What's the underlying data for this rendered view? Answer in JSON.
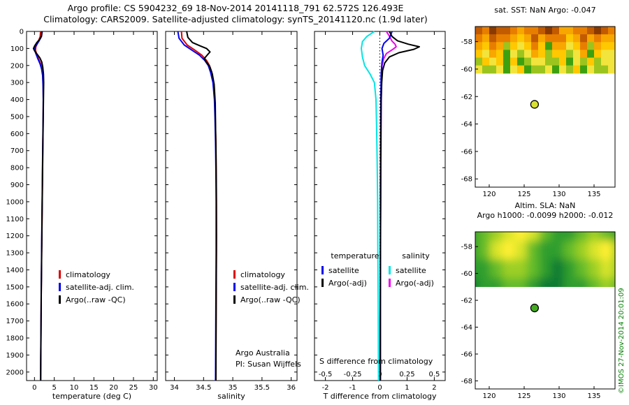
{
  "header": {
    "line1": "Argo profile: CS 5904232_69 18-Nov-2014 20141118_791 62.572S 126.493E",
    "line2": "Climatology: CARS2009. Satellite-adjusted climatology: synTS_20141120.nc (1.9d later)"
  },
  "watermark": "©IMOS 27-Nov-2014 20:01:09",
  "chart_data": [
    {
      "id": "temperature_profile",
      "type": "line",
      "xlabel": "temperature (deg C)",
      "xlim": [
        -2,
        31
      ],
      "ylim": [
        0,
        2050
      ],
      "xticks": [
        0,
        5,
        10,
        15,
        20,
        25,
        30
      ],
      "yticks": [
        0,
        100,
        200,
        300,
        400,
        500,
        600,
        700,
        800,
        900,
        1000,
        1100,
        1200,
        1300,
        1400,
        1500,
        1600,
        1700,
        1800,
        1900,
        2000
      ],
      "legend_position": "lower-left-inside",
      "series": [
        {
          "name": "climatology",
          "color": "#dd0000",
          "points": [
            [
              0,
              1.55
            ],
            [
              30,
              1.45
            ],
            [
              60,
              0.95
            ],
            [
              90,
              0.35
            ],
            [
              110,
              0.25
            ],
            [
              130,
              0.5
            ],
            [
              160,
              1.0
            ],
            [
              190,
              1.55
            ],
            [
              220,
              1.9
            ],
            [
              260,
              2.1
            ],
            [
              320,
              2.2
            ],
            [
              400,
              2.24
            ],
            [
              500,
              2.2
            ],
            [
              600,
              2.15
            ],
            [
              700,
              2.1
            ],
            [
              800,
              2.05
            ],
            [
              900,
              2.0
            ],
            [
              1000,
              1.96
            ],
            [
              1100,
              1.91
            ],
            [
              1200,
              1.86
            ],
            [
              1300,
              1.81
            ],
            [
              1400,
              1.77
            ],
            [
              1500,
              1.73
            ],
            [
              1600,
              1.69
            ],
            [
              1700,
              1.66
            ],
            [
              1800,
              1.63
            ],
            [
              1900,
              1.6
            ],
            [
              2000,
              1.57
            ],
            [
              2050,
              1.56
            ]
          ]
        },
        {
          "name": "satellite-adj. clim.",
          "color": "#0000ee",
          "points": [
            [
              0,
              1.95
            ],
            [
              30,
              1.75
            ],
            [
              60,
              1.05
            ],
            [
              90,
              0.2
            ],
            [
              110,
              0.05
            ],
            [
              130,
              0.35
            ],
            [
              160,
              0.85
            ],
            [
              190,
              1.4
            ],
            [
              220,
              1.8
            ],
            [
              260,
              2.05
            ],
            [
              320,
              2.17
            ],
            [
              400,
              2.21
            ],
            [
              500,
              2.18
            ],
            [
              600,
              2.13
            ],
            [
              700,
              2.08
            ],
            [
              800,
              2.03
            ],
            [
              900,
              1.98
            ],
            [
              1000,
              1.94
            ],
            [
              1100,
              1.89
            ],
            [
              1200,
              1.84
            ],
            [
              1300,
              1.79
            ],
            [
              1400,
              1.75
            ],
            [
              1500,
              1.71
            ],
            [
              1600,
              1.68
            ],
            [
              1700,
              1.65
            ],
            [
              1800,
              1.62
            ],
            [
              1900,
              1.59
            ],
            [
              2000,
              1.56
            ],
            [
              2050,
              1.55
            ]
          ]
        },
        {
          "name": "Argo(..raw -QC)",
          "color": "#000000",
          "points": [
            [
              0,
              1.85
            ],
            [
              25,
              1.8
            ],
            [
              45,
              1.35
            ],
            [
              65,
              0.6
            ],
            [
              85,
              0.05
            ],
            [
              100,
              -0.25
            ],
            [
              115,
              0.05
            ],
            [
              135,
              0.7
            ],
            [
              155,
              1.35
            ],
            [
              180,
              1.85
            ],
            [
              210,
              2.1
            ],
            [
              250,
              2.27
            ],
            [
              300,
              2.32
            ],
            [
              360,
              2.28
            ],
            [
              450,
              2.23
            ],
            [
              550,
              2.18
            ],
            [
              650,
              2.13
            ],
            [
              750,
              2.08
            ],
            [
              850,
              2.03
            ],
            [
              950,
              1.99
            ],
            [
              1050,
              1.94
            ],
            [
              1150,
              1.89
            ],
            [
              1250,
              1.84
            ],
            [
              1350,
              1.79
            ],
            [
              1450,
              1.75
            ],
            [
              1550,
              1.71
            ],
            [
              1650,
              1.68
            ],
            [
              1750,
              1.65
            ],
            [
              1850,
              1.62
            ],
            [
              1950,
              1.59
            ],
            [
              2050,
              1.56
            ]
          ]
        }
      ]
    },
    {
      "id": "salinity_profile",
      "type": "line",
      "xlabel": "salinity",
      "xlim": [
        33.85,
        36.1
      ],
      "ylim": [
        0,
        2050
      ],
      "xticks": [
        34,
        34.5,
        35,
        35.5,
        36
      ],
      "yticks": [
        0,
        100,
        200,
        300,
        400,
        500,
        600,
        700,
        800,
        900,
        1000,
        1100,
        1200,
        1300,
        1400,
        1500,
        1600,
        1700,
        1800,
        1900,
        2000
      ],
      "annotations": [
        "Argo Australia",
        "PI: Susan Wijffels"
      ],
      "series": [
        {
          "name": "climatology",
          "color": "#dd0000",
          "points": [
            [
              0,
              34.12
            ],
            [
              40,
              34.13
            ],
            [
              80,
              34.22
            ],
            [
              110,
              34.35
            ],
            [
              140,
              34.47
            ],
            [
              170,
              34.55
            ],
            [
              200,
              34.6
            ],
            [
              240,
              34.64
            ],
            [
              300,
              34.67
            ],
            [
              400,
              34.69
            ],
            [
              500,
              34.7
            ],
            [
              650,
              34.71
            ],
            [
              800,
              34.715
            ],
            [
              1000,
              34.72
            ],
            [
              1300,
              34.72
            ],
            [
              1600,
              34.715
            ],
            [
              2050,
              34.71
            ]
          ]
        },
        {
          "name": "satellite-adj. clim.",
          "color": "#0000ee",
          "points": [
            [
              0,
              34.06
            ],
            [
              40,
              34.08
            ],
            [
              80,
              34.17
            ],
            [
              110,
              34.3
            ],
            [
              140,
              34.43
            ],
            [
              170,
              34.52
            ],
            [
              200,
              34.58
            ],
            [
              240,
              34.62
            ],
            [
              300,
              34.66
            ],
            [
              400,
              34.685
            ],
            [
              500,
              34.695
            ],
            [
              650,
              34.705
            ],
            [
              800,
              34.71
            ],
            [
              1000,
              34.715
            ],
            [
              1300,
              34.715
            ],
            [
              1600,
              34.71
            ],
            [
              2050,
              34.705
            ]
          ]
        },
        {
          "name": "Argo(..raw -QC)",
          "color": "#000000",
          "points": [
            [
              0,
              34.21
            ],
            [
              35,
              34.23
            ],
            [
              65,
              34.31
            ],
            [
              85,
              34.44
            ],
            [
              100,
              34.55
            ],
            [
              120,
              34.61
            ],
            [
              140,
              34.56
            ],
            [
              160,
              34.51
            ],
            [
              185,
              34.56
            ],
            [
              210,
              34.61
            ],
            [
              250,
              34.65
            ],
            [
              310,
              34.68
            ],
            [
              420,
              34.7
            ],
            [
              550,
              34.705
            ],
            [
              700,
              34.712
            ],
            [
              900,
              34.718
            ],
            [
              1200,
              34.72
            ],
            [
              1500,
              34.717
            ],
            [
              1800,
              34.713
            ],
            [
              2050,
              34.71
            ]
          ]
        }
      ]
    },
    {
      "id": "difference_profile",
      "type": "line",
      "xlabel": "T difference from climatology",
      "s_axis_label": "S difference from climatology",
      "xlim": [
        -2.4,
        2.4
      ],
      "ylim": [
        0,
        2050
      ],
      "xticks": [
        -2,
        -1,
        0,
        1,
        2
      ],
      "yticks": [
        0,
        100,
        200,
        300,
        400,
        500,
        600,
        700,
        800,
        900,
        1000,
        1100,
        1200,
        1300,
        1400,
        1500,
        1600,
        1700,
        1800,
        1900,
        2000
      ],
      "zero_line": true,
      "s_ticks": [
        -0.5,
        -0.25,
        0,
        0.25,
        0.5
      ],
      "s_scale": 4,
      "legend_headers": [
        "temperature",
        "salinity"
      ],
      "series": [
        {
          "name": "satellite",
          "color": "#00e5e5",
          "scale": 4,
          "points": [
            [
              0,
              -0.05
            ],
            [
              30,
              -0.12
            ],
            [
              60,
              -0.16
            ],
            [
              100,
              -0.17
            ],
            [
              150,
              -0.16
            ],
            [
              200,
              -0.14
            ],
            [
              250,
              -0.09
            ],
            [
              300,
              -0.05
            ],
            [
              400,
              -0.035
            ],
            [
              550,
              -0.03
            ],
            [
              750,
              -0.025
            ],
            [
              1000,
              -0.02
            ],
            [
              1300,
              -0.018
            ],
            [
              1600,
              -0.015
            ],
            [
              2050,
              -0.012
            ]
          ]
        },
        {
          "name": "Argo(-adj)",
          "color": "#ee00ee",
          "scale": 4,
          "points": [
            [
              0,
              0.06
            ],
            [
              30,
              0.09
            ],
            [
              55,
              0.11
            ],
            [
              75,
              0.14
            ],
            [
              90,
              0.15
            ],
            [
              105,
              0.12
            ],
            [
              130,
              0.06
            ],
            [
              160,
              0.035
            ],
            [
              200,
              0.02
            ],
            [
              300,
              0.015
            ],
            [
              450,
              0.012
            ],
            [
              700,
              0.01
            ],
            [
              1000,
              0.008
            ],
            [
              1400,
              0.006
            ],
            [
              2050,
              0.005
            ]
          ]
        },
        {
          "name": "satellite",
          "color": "#0000ee",
          "scale": 1,
          "points": [
            [
              0,
              0.45
            ],
            [
              40,
              0.35
            ],
            [
              70,
              0.15
            ],
            [
              100,
              0.08
            ],
            [
              140,
              0.12
            ],
            [
              180,
              0.08
            ],
            [
              250,
              0.05
            ],
            [
              350,
              0.04
            ],
            [
              500,
              0.03
            ],
            [
              700,
              0.03
            ],
            [
              900,
              0.02
            ],
            [
              1100,
              0.02
            ],
            [
              1400,
              0.02
            ],
            [
              1700,
              0.01
            ],
            [
              2050,
              0.01
            ]
          ]
        },
        {
          "name": "Argo(-adj)",
          "color": "#000000",
          "scale": 1,
          "points": [
            [
              0,
              0.35
            ],
            [
              30,
              0.45
            ],
            [
              55,
              0.65
            ],
            [
              75,
              1.05
            ],
            [
              90,
              1.45
            ],
            [
              105,
              1.25
            ],
            [
              125,
              0.7
            ],
            [
              150,
              0.35
            ],
            [
              185,
              0.18
            ],
            [
              230,
              0.1
            ],
            [
              300,
              0.07
            ],
            [
              400,
              0.05
            ],
            [
              550,
              0.04
            ],
            [
              750,
              0.03
            ],
            [
              1000,
              0.03
            ],
            [
              1300,
              0.02
            ],
            [
              1600,
              0.02
            ],
            [
              2050,
              0.02
            ]
          ]
        }
      ]
    },
    {
      "id": "sst_map",
      "type": "heatmap",
      "title": "sat. SST: NaN Argo: -0.047",
      "xlim": [
        118,
        138
      ],
      "ylim": [
        -56.9,
        -68.6
      ],
      "xticks": [
        120,
        125,
        130,
        135
      ],
      "yticks": [
        -58,
        -60,
        -62,
        -64,
        -66,
        -68
      ],
      "grid_lat_span": [
        -56.9,
        -60.3
      ],
      "smooth": false,
      "palette": [
        "#8a3a00",
        "#c25a00",
        "#e87e00",
        "#f8a600",
        "#ffc800",
        "#f2e43c",
        "#9cc41e",
        "#3da10f"
      ],
      "grid": [
        "12011232210133221012",
        "23122343132224313233",
        "34236454247335426344",
        "45347565346446537455",
        "64547476556647564655",
        "56657547665756475665"
      ],
      "marker": {
        "lon": 126.49,
        "lat": -62.57,
        "color": "#d8e034"
      }
    },
    {
      "id": "sla_map",
      "type": "heatmap",
      "title": "Altim. SLA: NaN",
      "subtitle": "Argo h1000: -0.0099 h2000: -0.012",
      "xlim": [
        118,
        138
      ],
      "ylim": [
        -56.9,
        -68.6
      ],
      "xticks": [
        120,
        125,
        130,
        135
      ],
      "yticks": [
        -58,
        -60,
        -62,
        -64,
        -66,
        -68
      ],
      "grid_lat_span": [
        -56.9,
        -61.0
      ],
      "smooth": true,
      "palette": [
        "#0f7a33",
        "#2f9e2e",
        "#63bb2a",
        "#9ccf28",
        "#d8e42a",
        "#ffef30"
      ],
      "grid": [
        "1234542112321",
        "1245421123453",
        "1123321012343",
        "0112210011232"
      ],
      "marker": {
        "lon": 126.49,
        "lat": -62.57,
        "color": "#44aa22"
      }
    }
  ]
}
